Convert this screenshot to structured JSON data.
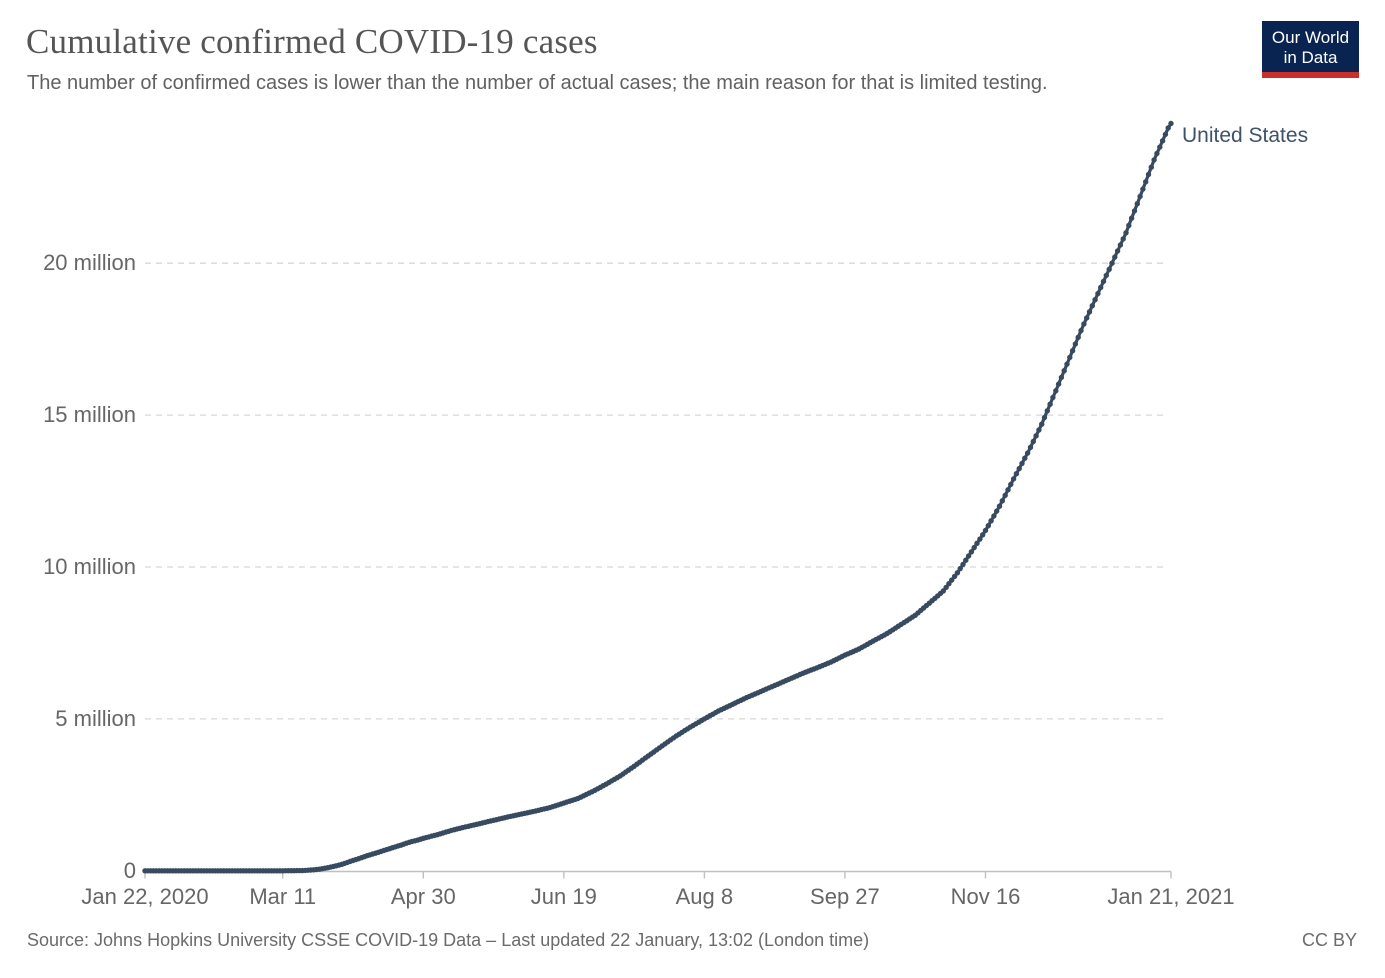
{
  "header": {
    "title": "Cumulative confirmed COVID-19 cases",
    "subtitle": "The number of confirmed cases is lower than the number of actual cases; the main reason for that is limited testing.",
    "logo": {
      "line1": "Our World",
      "line2": "in Data",
      "bg_color": "#0A2452",
      "stripe_color": "#C9302C"
    }
  },
  "footer": {
    "source": "Source: Johns Hopkins University CSSE COVID-19 Data – Last updated 22 January, 13:02 (London time)",
    "license": "CC BY"
  },
  "chart_data": {
    "type": "line",
    "title": "Cumulative confirmed COVID-19 cases",
    "series": [
      {
        "name": "United States",
        "color": "#384A5F",
        "points_day_cases": [
          [
            0,
            1
          ],
          [
            5,
            5
          ],
          [
            10,
            8
          ],
          [
            15,
            13
          ],
          [
            25,
            15
          ],
          [
            35,
            18
          ],
          [
            39,
            32
          ],
          [
            44,
            225
          ],
          [
            49,
            1301
          ],
          [
            53,
            3500
          ],
          [
            56,
            8000
          ],
          [
            58,
            19100
          ],
          [
            60,
            33000
          ],
          [
            62,
            54000
          ],
          [
            64,
            84000
          ],
          [
            66,
            122000
          ],
          [
            68,
            164000
          ],
          [
            70,
            213000
          ],
          [
            73,
            308000
          ],
          [
            76,
            397000
          ],
          [
            79,
            496000
          ],
          [
            82,
            580000
          ],
          [
            85,
            668000
          ],
          [
            88,
            759000
          ],
          [
            91,
            843000
          ],
          [
            94,
            939000
          ],
          [
            97,
            1012000
          ],
          [
            99,
            1070000
          ],
          [
            104,
            1188000
          ],
          [
            109,
            1330000
          ],
          [
            114,
            1445000
          ],
          [
            119,
            1552000
          ],
          [
            124,
            1662000
          ],
          [
            129,
            1770000
          ],
          [
            134,
            1870000
          ],
          [
            139,
            1970000
          ],
          [
            144,
            2080000
          ],
          [
            149,
            2230000
          ],
          [
            154,
            2380000
          ],
          [
            159,
            2600000
          ],
          [
            164,
            2850000
          ],
          [
            169,
            3120000
          ],
          [
            174,
            3440000
          ],
          [
            179,
            3780000
          ],
          [
            184,
            4110000
          ],
          [
            189,
            4440000
          ],
          [
            194,
            4730000
          ],
          [
            199,
            5000000
          ],
          [
            204,
            5260000
          ],
          [
            209,
            5480000
          ],
          [
            214,
            5700000
          ],
          [
            219,
            5900000
          ],
          [
            224,
            6100000
          ],
          [
            229,
            6300000
          ],
          [
            234,
            6500000
          ],
          [
            239,
            6680000
          ],
          [
            244,
            6870000
          ],
          [
            249,
            7100000
          ],
          [
            254,
            7300000
          ],
          [
            259,
            7560000
          ],
          [
            264,
            7810000
          ],
          [
            269,
            8110000
          ],
          [
            274,
            8410000
          ],
          [
            279,
            8810000
          ],
          [
            284,
            9210000
          ],
          [
            289,
            9810000
          ],
          [
            294,
            10500000
          ],
          [
            299,
            11200000
          ],
          [
            304,
            12000000
          ],
          [
            309,
            12900000
          ],
          [
            314,
            13750000
          ],
          [
            319,
            14700000
          ],
          [
            324,
            15800000
          ],
          [
            329,
            16900000
          ],
          [
            334,
            18000000
          ],
          [
            339,
            19000000
          ],
          [
            344,
            20000000
          ],
          [
            349,
            21000000
          ],
          [
            354,
            22200000
          ],
          [
            359,
            23400000
          ],
          [
            364,
            24450000
          ],
          [
            365,
            24600000
          ]
        ]
      }
    ],
    "x_axis": {
      "start_date": "Jan 22, 2020",
      "end_date": "Jan 21, 2021",
      "total_days": 365,
      "ticks": [
        {
          "day": 0,
          "label": "Jan 22, 2020"
        },
        {
          "day": 49,
          "label": "Mar 11"
        },
        {
          "day": 99,
          "label": "Apr 30"
        },
        {
          "day": 149,
          "label": "Jun 19"
        },
        {
          "day": 199,
          "label": "Aug 8"
        },
        {
          "day": 249,
          "label": "Sep 27"
        },
        {
          "day": 299,
          "label": "Nov 16"
        },
        {
          "day": 365,
          "label": "Jan 21, 2021"
        }
      ]
    },
    "y_axis": {
      "ticks": [
        {
          "value": 0,
          "label": "0"
        },
        {
          "value": 5000000,
          "label": "5 million"
        },
        {
          "value": 10000000,
          "label": "10 million"
        },
        {
          "value": 15000000,
          "label": "15 million"
        },
        {
          "value": 20000000,
          "label": "20 million"
        }
      ],
      "ylim": [
        0,
        24600000
      ]
    },
    "grid": true,
    "legend_position": "end-of-line-label",
    "colors": {
      "gridline": "#d7d7d7",
      "axis": "#c0c0c0",
      "tick_text": "#666666",
      "entity_label": "#3E5268"
    }
  }
}
